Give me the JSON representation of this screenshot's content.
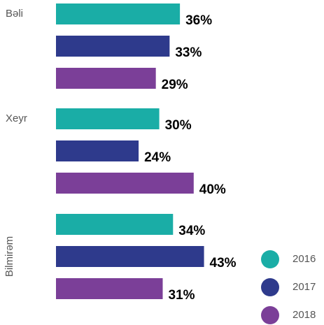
{
  "chart_data": {
    "type": "bar",
    "orientation": "horizontal",
    "categories": [
      "Bəli",
      "Xeyr",
      "Bilmirəm"
    ],
    "series": [
      {
        "name": "2016",
        "color": "#1aada6",
        "values": [
          36,
          30,
          34
        ],
        "value_labels": [
          "36%",
          "30%",
          "34%"
        ]
      },
      {
        "name": "2017",
        "color": "#2e3a8c",
        "values": [
          33,
          24,
          43
        ],
        "value_labels": [
          "33%",
          "24%",
          "43%"
        ]
      },
      {
        "name": "2018",
        "color": "#7b3f98",
        "values": [
          29,
          40,
          31
        ],
        "value_labels": [
          "29%",
          "40%",
          "31%"
        ]
      }
    ],
    "legend": "bottom-right"
  }
}
